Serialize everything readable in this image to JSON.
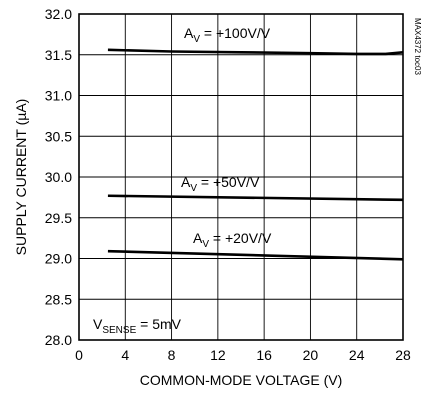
{
  "chart_data": {
    "type": "line",
    "xlabel": "COMMON-MODE VOLTAGE (V)",
    "ylabel": "SUPPLY CURRENT (µA)",
    "xlim": [
      0,
      28
    ],
    "ylim": [
      28.0,
      32.0
    ],
    "xticks": [
      "0",
      "4",
      "8",
      "12",
      "16",
      "20",
      "24",
      "28"
    ],
    "yticks": [
      "28.0",
      "28.5",
      "29.0",
      "29.5",
      "30.0",
      "30.5",
      "31.0",
      "31.5",
      "32.0"
    ],
    "grid": true,
    "series": [
      {
        "name": "AV = +100V/V",
        "label_main": "A",
        "label_sub": "V",
        "label_rest": " = +100V/V",
        "x": [
          2.5,
          8,
          14,
          20,
          24,
          26.5,
          28
        ],
        "y": [
          31.56,
          31.54,
          31.53,
          31.52,
          31.51,
          31.51,
          31.53
        ]
      },
      {
        "name": "AV = +50V/V",
        "label_main": "A",
        "label_sub": "V",
        "label_rest": " = +50V/V",
        "x": [
          2.5,
          28
        ],
        "y": [
          29.77,
          29.72
        ]
      },
      {
        "name": "AV = +20V/V",
        "label_main": "A",
        "label_sub": "V",
        "label_rest": " = +20V/V",
        "x": [
          2.5,
          28
        ],
        "y": [
          29.09,
          28.99
        ]
      }
    ],
    "condition": {
      "main": "V",
      "sub": "SENSE",
      "rest": " = 5mV"
    },
    "figure_id": "MAX4372 toc03"
  }
}
